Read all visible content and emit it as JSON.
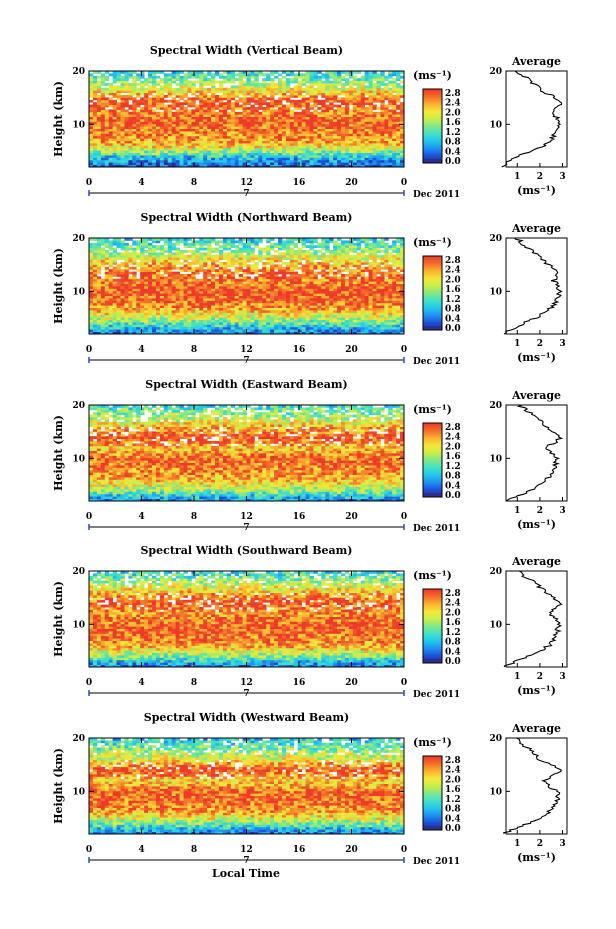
{
  "figure": {
    "x_axis_label": "Local Time",
    "date_main": "7",
    "date_side": "Dec 2011",
    "x_ticks": [
      "0",
      "4",
      "8",
      "12",
      "16",
      "20",
      "0"
    ],
    "y_label": "Height (km)",
    "y_ticks": [
      "20",
      "10"
    ],
    "colorbar_unit": "(ms⁻¹)",
    "colorbar_ticks": [
      "2.8",
      "2.4",
      "2.0",
      "1.6",
      "1.2",
      "0.8",
      "0.4",
      "0.0"
    ],
    "average_title": "Average",
    "average_xlabel": "(ms⁻¹)",
    "average_x_ticks": [
      "1",
      "2",
      "3"
    ],
    "colors": {
      "scale": [
        "#2b2f8c",
        "#1c4fd6",
        "#1e8ff0",
        "#22c6f0",
        "#3fe0c8",
        "#7ee68a",
        "#c8ee4a",
        "#f4e83a",
        "#fbb42e",
        "#f4702a",
        "#ee3a2a"
      ],
      "missing": "#ffffff",
      "axis": "#000000"
    }
  },
  "chart_data": [
    {
      "type": "heatmap",
      "title": "Spectral Width (Vertical Beam)",
      "x_range": [
        0,
        24
      ],
      "y_range": [
        2,
        20
      ],
      "color_range": [
        0.0,
        3.0
      ],
      "profile": [
        {
          "h": 2,
          "w": 0.3
        },
        {
          "h": 3,
          "w": 0.6
        },
        {
          "h": 4,
          "w": 1.0
        },
        {
          "h": 5,
          "w": 1.6
        },
        {
          "h": 6,
          "w": 2.2
        },
        {
          "h": 7,
          "w": 2.5
        },
        {
          "h": 8,
          "w": 2.6
        },
        {
          "h": 9,
          "w": 2.7
        },
        {
          "h": 10,
          "w": 2.8
        },
        {
          "h": 11,
          "w": 2.8
        },
        {
          "h": 12,
          "w": 2.6
        },
        {
          "h": 13,
          "w": 2.7
        },
        {
          "h": 14,
          "w": 2.9
        },
        {
          "h": 15,
          "w": 2.7
        },
        {
          "h": 16,
          "w": 2.2
        },
        {
          "h": 17,
          "w": 1.9
        },
        {
          "h": 18,
          "w": 1.6
        },
        {
          "h": 19,
          "w": 1.3
        },
        {
          "h": 20,
          "w": 1.0
        }
      ],
      "average_xlim": [
        0.5,
        3.2
      ]
    },
    {
      "type": "heatmap",
      "title": "Spectral Width (Northward Beam)",
      "x_range": [
        0,
        24
      ],
      "y_range": [
        2,
        20
      ],
      "color_range": [
        0.0,
        3.0
      ],
      "profile": [
        {
          "h": 2,
          "w": 0.4
        },
        {
          "h": 3,
          "w": 0.8
        },
        {
          "h": 4,
          "w": 1.3
        },
        {
          "h": 5,
          "w": 1.8
        },
        {
          "h": 6,
          "w": 2.2
        },
        {
          "h": 7,
          "w": 2.5
        },
        {
          "h": 8,
          "w": 2.7
        },
        {
          "h": 9,
          "w": 2.8
        },
        {
          "h": 10,
          "w": 2.9
        },
        {
          "h": 11,
          "w": 2.8
        },
        {
          "h": 12,
          "w": 2.6
        },
        {
          "h": 13,
          "w": 2.8
        },
        {
          "h": 14,
          "w": 2.6
        },
        {
          "h": 15,
          "w": 2.4
        },
        {
          "h": 16,
          "w": 2.1
        },
        {
          "h": 17,
          "w": 1.8
        },
        {
          "h": 18,
          "w": 1.5
        },
        {
          "h": 19,
          "w": 1.2
        },
        {
          "h": 20,
          "w": 1.0
        }
      ],
      "average_xlim": [
        0.5,
        3.2
      ]
    },
    {
      "type": "heatmap",
      "title": "Spectral Width (Eastward Beam)",
      "x_range": [
        0,
        24
      ],
      "y_range": [
        2,
        20
      ],
      "color_range": [
        0.0,
        3.0
      ],
      "profile": [
        {
          "h": 2,
          "w": 0.5
        },
        {
          "h": 3,
          "w": 1.0
        },
        {
          "h": 4,
          "w": 1.6
        },
        {
          "h": 5,
          "w": 2.0
        },
        {
          "h": 6,
          "w": 2.3
        },
        {
          "h": 7,
          "w": 2.5
        },
        {
          "h": 8,
          "w": 2.6
        },
        {
          "h": 9,
          "w": 2.7
        },
        {
          "h": 10,
          "w": 2.8
        },
        {
          "h": 11,
          "w": 2.5
        },
        {
          "h": 12,
          "w": 2.2
        },
        {
          "h": 13,
          "w": 2.7
        },
        {
          "h": 14,
          "w": 2.9
        },
        {
          "h": 15,
          "w": 2.6
        },
        {
          "h": 16,
          "w": 2.3
        },
        {
          "h": 17,
          "w": 2.0
        },
        {
          "h": 18,
          "w": 1.7
        },
        {
          "h": 19,
          "w": 1.4
        },
        {
          "h": 20,
          "w": 1.1
        }
      ],
      "average_xlim": [
        0.5,
        3.2
      ]
    },
    {
      "type": "heatmap",
      "title": "Spectral Width (Southward Beam)",
      "x_range": [
        0,
        24
      ],
      "y_range": [
        2,
        20
      ],
      "color_range": [
        0.0,
        3.0
      ],
      "profile": [
        {
          "h": 2,
          "w": 0.4
        },
        {
          "h": 3,
          "w": 0.9
        },
        {
          "h": 4,
          "w": 1.5
        },
        {
          "h": 5,
          "w": 2.0
        },
        {
          "h": 6,
          "w": 2.4
        },
        {
          "h": 7,
          "w": 2.6
        },
        {
          "h": 8,
          "w": 2.7
        },
        {
          "h": 9,
          "w": 2.8
        },
        {
          "h": 10,
          "w": 2.8
        },
        {
          "h": 11,
          "w": 2.7
        },
        {
          "h": 12,
          "w": 2.5
        },
        {
          "h": 13,
          "w": 2.7
        },
        {
          "h": 14,
          "w": 2.9
        },
        {
          "h": 15,
          "w": 2.6
        },
        {
          "h": 16,
          "w": 2.3
        },
        {
          "h": 17,
          "w": 2.0
        },
        {
          "h": 18,
          "w": 1.7
        },
        {
          "h": 19,
          "w": 1.3
        },
        {
          "h": 20,
          "w": 1.0
        }
      ],
      "average_xlim": [
        0.5,
        3.2
      ]
    },
    {
      "type": "heatmap",
      "title": "Spectral Width (Westward Beam)",
      "x_range": [
        0,
        24
      ],
      "y_range": [
        2,
        20
      ],
      "color_range": [
        0.0,
        3.0
      ],
      "profile": [
        {
          "h": 2,
          "w": 0.4
        },
        {
          "h": 3,
          "w": 0.9
        },
        {
          "h": 4,
          "w": 1.5
        },
        {
          "h": 5,
          "w": 2.0
        },
        {
          "h": 6,
          "w": 2.4
        },
        {
          "h": 7,
          "w": 2.6
        },
        {
          "h": 8,
          "w": 2.7
        },
        {
          "h": 9,
          "w": 2.8
        },
        {
          "h": 10,
          "w": 2.8
        },
        {
          "h": 11,
          "w": 2.4
        },
        {
          "h": 12,
          "w": 2.2
        },
        {
          "h": 13,
          "w": 2.6
        },
        {
          "h": 14,
          "w": 2.9
        },
        {
          "h": 15,
          "w": 2.5
        },
        {
          "h": 16,
          "w": 2.0
        },
        {
          "h": 17,
          "w": 1.8
        },
        {
          "h": 18,
          "w": 1.5
        },
        {
          "h": 19,
          "w": 1.2
        },
        {
          "h": 20,
          "w": 0.9
        }
      ],
      "average_xlim": [
        0.5,
        3.2
      ]
    }
  ]
}
